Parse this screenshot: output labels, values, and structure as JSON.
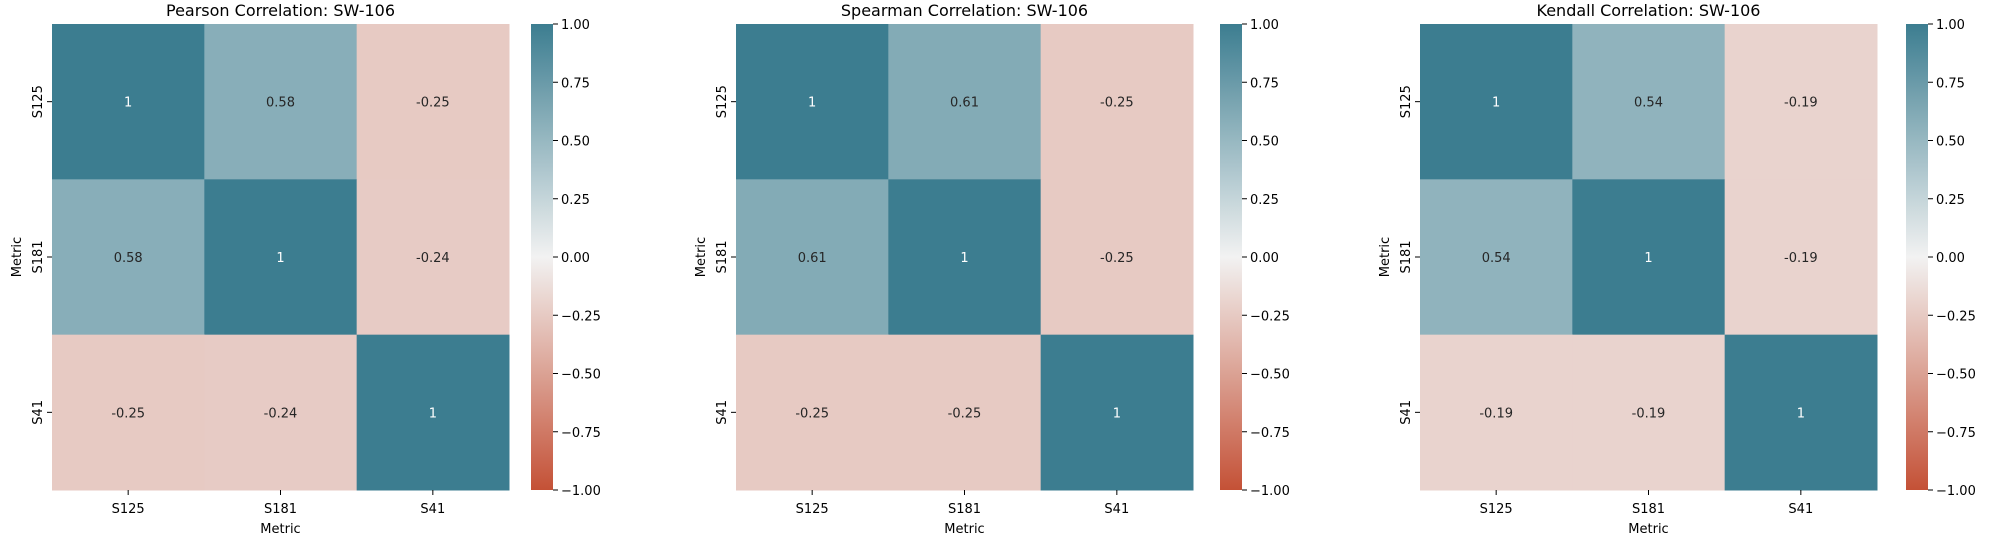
{
  "chart_data": [
    {
      "type": "heatmap",
      "title": "Pearson Correlation: SW-106",
      "xlabel": "Metric",
      "ylabel": "Metric",
      "categories": [
        "S125",
        "S181",
        "S41"
      ],
      "values": [
        [
          1,
          0.58,
          -0.25
        ],
        [
          0.58,
          1,
          -0.24
        ],
        [
          -0.25,
          -0.24,
          1
        ]
      ],
      "annotations": [
        [
          "1",
          "0.58",
          "-0.25"
        ],
        [
          "0.58",
          "1",
          "-0.24"
        ],
        [
          "-0.25",
          "-0.24",
          "1"
        ]
      ],
      "colorbar": {
        "range": [
          -1,
          1
        ],
        "ticks": [
          1.0,
          0.75,
          0.5,
          0.25,
          0.0,
          -0.25,
          -0.5,
          -0.75,
          -1.0
        ],
        "tick_labels": [
          "1.00",
          "0.75",
          "0.50",
          "0.25",
          "0.00",
          "−0.25",
          "−0.50",
          "−0.75",
          "−1.00"
        ]
      },
      "grid": false
    },
    {
      "type": "heatmap",
      "title": "Spearman Correlation: SW-106",
      "xlabel": "Metric",
      "ylabel": "Metric",
      "categories": [
        "S125",
        "S181",
        "S41"
      ],
      "values": [
        [
          1,
          0.61,
          -0.25
        ],
        [
          0.61,
          1,
          -0.25
        ],
        [
          -0.25,
          -0.25,
          1
        ]
      ],
      "annotations": [
        [
          "1",
          "0.61",
          "-0.25"
        ],
        [
          "0.61",
          "1",
          "-0.25"
        ],
        [
          "-0.25",
          "-0.25",
          "1"
        ]
      ],
      "colorbar": {
        "range": [
          -1,
          1
        ],
        "ticks": [
          1.0,
          0.75,
          0.5,
          0.25,
          0.0,
          -0.25,
          -0.5,
          -0.75,
          -1.0
        ],
        "tick_labels": [
          "1.00",
          "0.75",
          "0.50",
          "0.25",
          "0.00",
          "−0.25",
          "−0.50",
          "−0.75",
          "−1.00"
        ]
      },
      "grid": false
    },
    {
      "type": "heatmap",
      "title": "Kendall Correlation: SW-106",
      "xlabel": "Metric",
      "ylabel": "Metric",
      "categories": [
        "S125",
        "S181",
        "S41"
      ],
      "values": [
        [
          1,
          0.54,
          -0.19
        ],
        [
          0.54,
          1,
          -0.19
        ],
        [
          -0.19,
          -0.19,
          1
        ]
      ],
      "annotations": [
        [
          "1",
          "0.54",
          "-0.19"
        ],
        [
          "0.54",
          "1",
          "-0.19"
        ],
        [
          "-0.19",
          "-0.19",
          "1"
        ]
      ],
      "colorbar": {
        "range": [
          -1,
          1
        ],
        "ticks": [
          1.0,
          0.75,
          0.5,
          0.25,
          0.0,
          -0.25,
          -0.5,
          -0.75,
          -1.0
        ],
        "tick_labels": [
          "1.00",
          "0.75",
          "0.50",
          "0.25",
          "0.00",
          "−0.25",
          "−0.50",
          "−0.75",
          "−1.00"
        ]
      },
      "grid": false
    }
  ],
  "colors": {
    "negative_end": "#c45136",
    "center": "#f2f2f2",
    "positive_end": "#3c7d90",
    "dark_text": "#262626",
    "light_text": "#ffffff"
  }
}
